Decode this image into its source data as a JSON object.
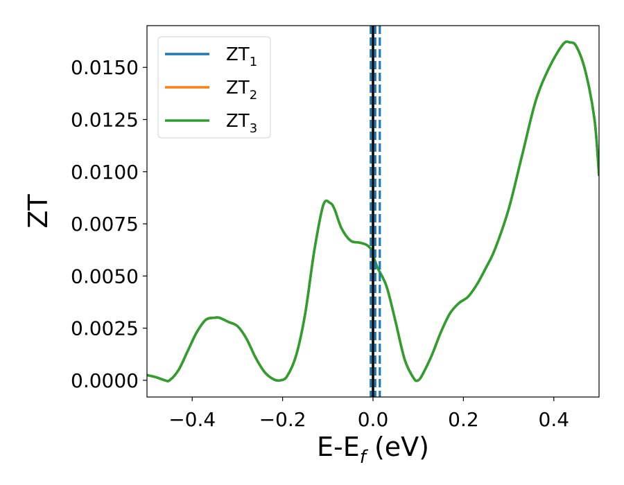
{
  "chart_data": {
    "type": "line",
    "xlabel": {
      "main": "E-E",
      "sub": "f",
      "unit": " (eV)"
    },
    "ylabel": "ZT",
    "xlim": [
      -0.5,
      0.5
    ],
    "ylim": [
      -0.0008,
      0.017
    ],
    "x_ticks": [
      {
        "value": -0.4,
        "label": "−0.4"
      },
      {
        "value": -0.2,
        "label": "−0.2"
      },
      {
        "value": 0.0,
        "label": "0.0"
      },
      {
        "value": 0.2,
        "label": "0.2"
      },
      {
        "value": 0.4,
        "label": "0.4"
      }
    ],
    "y_ticks": [
      {
        "value": 0.0,
        "label": "0.0000"
      },
      {
        "value": 0.0025,
        "label": "0.0025"
      },
      {
        "value": 0.005,
        "label": "0.0050"
      },
      {
        "value": 0.0075,
        "label": "0.0075"
      },
      {
        "value": 0.01,
        "label": "0.0100"
      },
      {
        "value": 0.0125,
        "label": "0.0125"
      },
      {
        "value": 0.015,
        "label": "0.0150"
      }
    ],
    "grid": false,
    "legend_position": "top-left",
    "series": [
      {
        "name": "ZT",
        "sub": "1",
        "color": "#1f77b4"
      },
      {
        "name": "ZT",
        "sub": "2",
        "color": "#ff7f0e"
      },
      {
        "name": "ZT",
        "sub": "3",
        "color": "#2ca02c"
      }
    ],
    "x": [
      -0.5,
      -0.48,
      -0.46,
      -0.45,
      -0.43,
      -0.41,
      -0.39,
      -0.37,
      -0.35,
      -0.34,
      -0.32,
      -0.3,
      -0.28,
      -0.26,
      -0.24,
      -0.22,
      -0.205,
      -0.19,
      -0.17,
      -0.15,
      -0.13,
      -0.11,
      -0.095,
      -0.085,
      -0.07,
      -0.05,
      -0.03,
      -0.015,
      -0.005,
      0.0,
      0.01,
      0.03,
      0.05,
      0.07,
      0.09,
      0.1,
      0.11,
      0.13,
      0.15,
      0.17,
      0.19,
      0.21,
      0.23,
      0.25,
      0.27,
      0.3,
      0.33,
      0.36,
      0.39,
      0.42,
      0.435,
      0.45,
      0.47,
      0.49,
      0.5
    ],
    "y": [
      0.00025,
      0.00015,
      0.0,
      0.0,
      0.0005,
      0.0014,
      0.0023,
      0.0029,
      0.003,
      0.003,
      0.0028,
      0.0026,
      0.002,
      0.0011,
      0.0004,
      5e-05,
      0.0,
      0.0002,
      0.0012,
      0.0032,
      0.0062,
      0.0084,
      0.0085,
      0.0082,
      0.0073,
      0.0067,
      0.0066,
      0.0065,
      0.0063,
      0.006,
      0.0054,
      0.0045,
      0.0028,
      0.001,
      0.0001,
      0.0,
      0.0003,
      0.0012,
      0.0023,
      0.0032,
      0.0037,
      0.004,
      0.0046,
      0.0054,
      0.0063,
      0.0082,
      0.0108,
      0.0134,
      0.015,
      0.0161,
      0.0162,
      0.016,
      0.0148,
      0.0125,
      0.0098
    ],
    "vlines": [
      {
        "x": 0.0,
        "style": "solid",
        "color": "#000000"
      },
      {
        "x": -0.005,
        "style": "dashed",
        "color": "#1f77b4"
      },
      {
        "x": 0.005,
        "style": "dashed",
        "color": "#1f77b4"
      },
      {
        "x": 0.015,
        "style": "dashed",
        "color": "#1f77b4"
      }
    ]
  }
}
